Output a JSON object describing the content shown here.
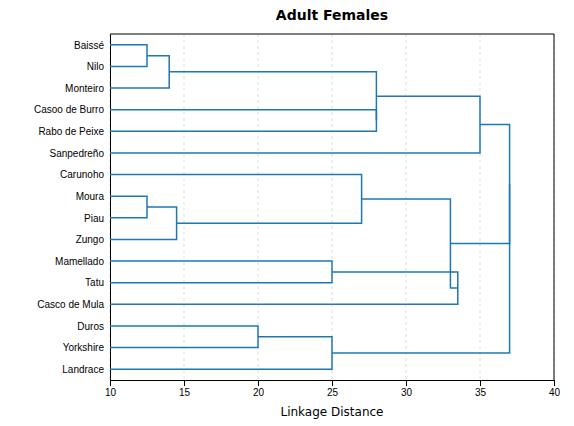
{
  "chart_data": {
    "type": "dendrogram",
    "title": "Adult Females",
    "xlabel": "Linkage Distance",
    "categories": [
      "Baissé",
      "Nilo",
      "Monteiro",
      "Casoo de Burro",
      "Rabo de Peixe",
      "Sanpedreño",
      "Carunoho",
      "Moura",
      "Piau",
      "Zungo",
      "Mamellado",
      "Tatu",
      "Casco de Mula",
      "Duros",
      "Yorkshire",
      "Landrace"
    ],
    "merges": [
      {
        "children": [
          0,
          1
        ],
        "distance": 12.5
      },
      {
        "children": [
          16,
          2
        ],
        "distance": 14.0
      },
      {
        "children": [
          3,
          4
        ],
        "distance": 28.0
      },
      {
        "children": [
          17,
          18
        ],
        "distance": 28.0
      },
      {
        "children": [
          19,
          5
        ],
        "distance": 35.0
      },
      {
        "children": [
          7,
          8
        ],
        "distance": 12.5
      },
      {
        "children": [
          21,
          9
        ],
        "distance": 14.5
      },
      {
        "children": [
          6,
          22
        ],
        "distance": 27.0
      },
      {
        "children": [
          10,
          11
        ],
        "distance": 25.0
      },
      {
        "children": [
          24,
          12
        ],
        "distance": 33.5
      },
      {
        "children": [
          23,
          25
        ],
        "distance": 33.0
      },
      {
        "children": [
          13,
          14
        ],
        "distance": 20.0
      },
      {
        "children": [
          27,
          15
        ],
        "distance": 25.0
      },
      {
        "children": [
          20,
          26
        ],
        "distance": 37.0
      },
      {
        "children": [
          29,
          28
        ],
        "distance": 37.0
      }
    ],
    "xlim": [
      10,
      40
    ],
    "xticks": [
      10,
      15,
      20,
      25,
      30,
      35,
      40
    ],
    "grid": true
  }
}
